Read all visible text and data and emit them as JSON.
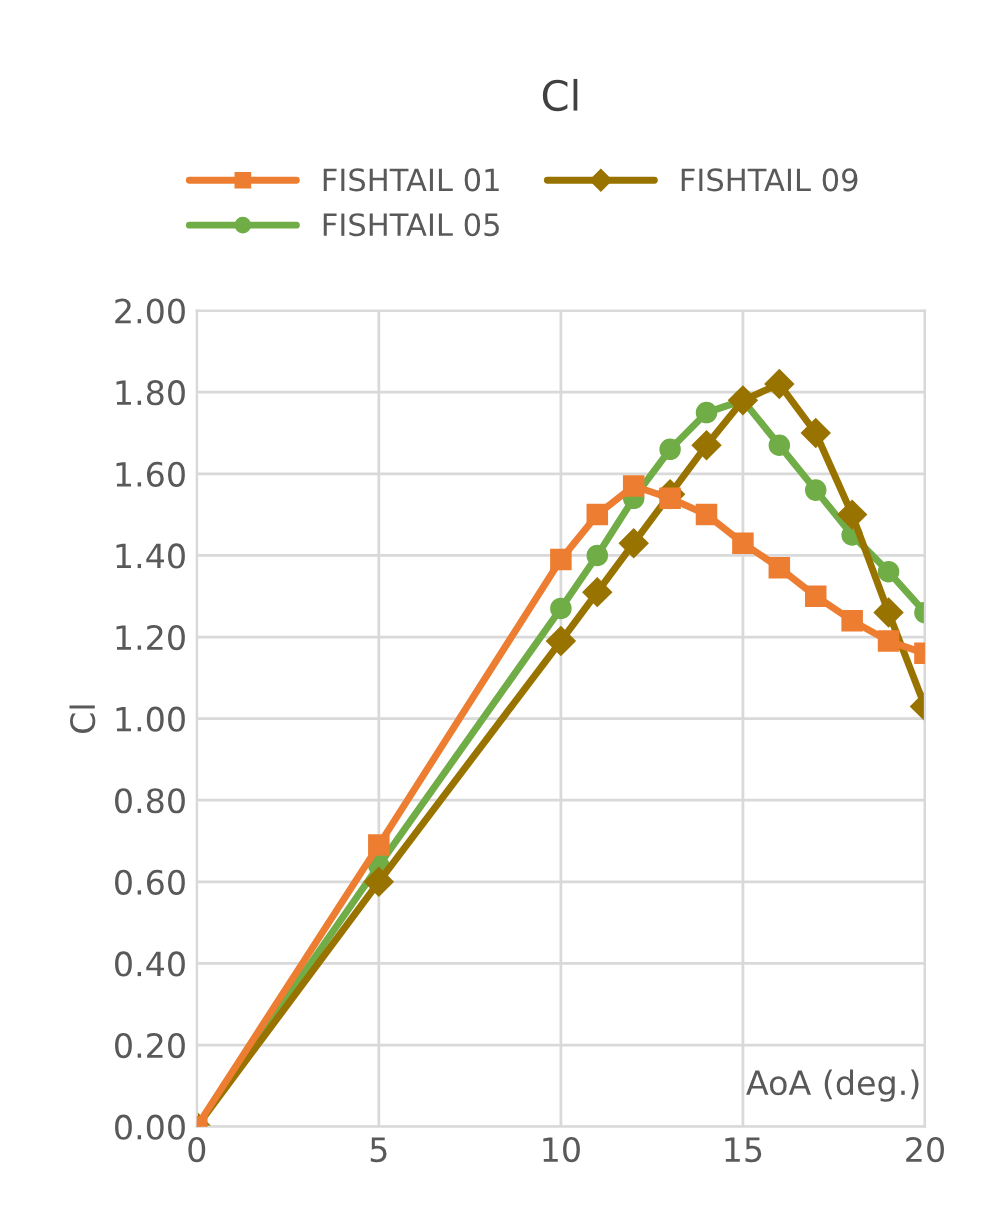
{
  "chart_data": {
    "type": "line",
    "title": "Cl",
    "xlabel": "AoA (deg.)",
    "ylabel": "Cl",
    "x": [
      0,
      5,
      10,
      11,
      12,
      13,
      14,
      15,
      16,
      17,
      18,
      19,
      20
    ],
    "series": [
      {
        "name": "FISHTAIL 01",
        "color": "#ed7d31",
        "marker": "square",
        "values": [
          0.0,
          0.69,
          1.39,
          1.5,
          1.57,
          1.54,
          1.5,
          1.43,
          1.37,
          1.3,
          1.24,
          1.19,
          1.16
        ]
      },
      {
        "name": "FISHTAIL 05",
        "color": "#70ad47",
        "marker": "circle",
        "values": [
          0.0,
          0.64,
          1.27,
          1.4,
          1.54,
          1.66,
          1.75,
          1.78,
          1.67,
          1.56,
          1.45,
          1.36,
          1.26
        ]
      },
      {
        "name": "FISHTAIL 09",
        "color": "#997300",
        "marker": "diamond",
        "values": [
          0.0,
          0.6,
          1.19,
          1.31,
          1.43,
          1.55,
          1.67,
          1.78,
          1.82,
          1.7,
          1.5,
          1.26,
          1.03
        ]
      }
    ],
    "xlim": [
      0,
      20
    ],
    "xticks": [
      0,
      5,
      10,
      15,
      20
    ],
    "ylim": [
      0,
      2
    ],
    "yticks": [
      {
        "value": 0,
        "label": "0.00"
      },
      {
        "value": 0.2,
        "label": "0.20"
      },
      {
        "value": 0.4,
        "label": "0.40"
      },
      {
        "value": 0.6,
        "label": "0.60"
      },
      {
        "value": 0.8,
        "label": "0.80"
      },
      {
        "value": 1.0,
        "label": "1.00"
      },
      {
        "value": 1.2,
        "label": "1.20"
      },
      {
        "value": 1.4,
        "label": "1.40"
      },
      {
        "value": 1.6,
        "label": "1.60"
      },
      {
        "value": 1.8,
        "label": "1.80"
      },
      {
        "value": 2.0,
        "label": "2.00"
      }
    ],
    "grid": true,
    "legend": "top",
    "line_style": "solid"
  }
}
